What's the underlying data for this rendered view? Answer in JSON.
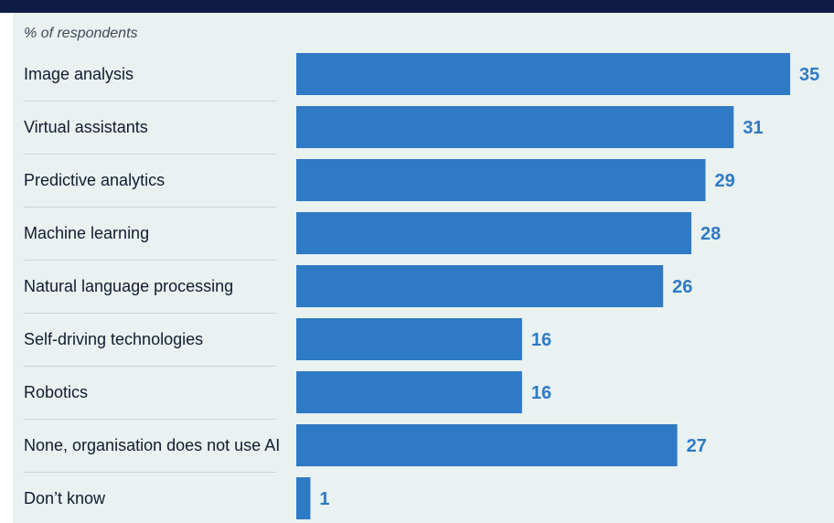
{
  "chart_data": {
    "type": "bar",
    "orientation": "horizontal",
    "subtitle": "% of respondents",
    "categories": [
      "Image analysis",
      "Virtual assistants",
      "Predictive analytics",
      "Machine learning",
      "Natural language processing",
      "Self-driving technologies",
      "Robotics",
      "None, organisation does not use AI",
      "Don’t know"
    ],
    "values": [
      35,
      31,
      29,
      28,
      26,
      16,
      16,
      27,
      1
    ],
    "xlim": [
      0,
      40
    ],
    "grid": false,
    "data_labels": true
  },
  "colors": {
    "header_band": "#0f1c45",
    "panel_background": "#e9f1f1",
    "bar": "#2f7ac4",
    "value_label": "#2f7ac4",
    "category_label": "#111b2e",
    "row_separator": "#c9d6d6"
  }
}
